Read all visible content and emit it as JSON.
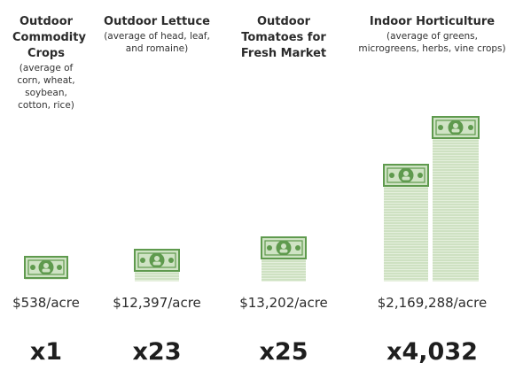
{
  "chart_data": {
    "type": "bar",
    "categories": [
      "Outdoor Commodity Crops",
      "Outdoor Lettuce",
      "Outdoor Tomatoes for Fresh Market",
      "Indoor Horticulture"
    ],
    "subtitles": [
      "(average of corn, wheat, soybean, cotton, rice)",
      "(average of head, leaf, and romaine)",
      "",
      "(average of greens, microgreens, herbs, vine crops)"
    ],
    "values": [
      538,
      12397,
      13202,
      2169288
    ],
    "value_labels": [
      "$538/acre",
      "$12,397/acre",
      "$13,202/acre",
      "$2,169,288/acre"
    ],
    "multipliers": [
      "x1",
      "x23",
      "x25",
      "x4,032"
    ],
    "colors": {
      "bill_dark": "#5f9a4e",
      "bill_light": "#cfe3c4",
      "stack_stripe_light": "#e4efdc",
      "stack_stripe_dark": "#b7d3a8"
    },
    "icon": "dollar-bill-stack-icon"
  }
}
